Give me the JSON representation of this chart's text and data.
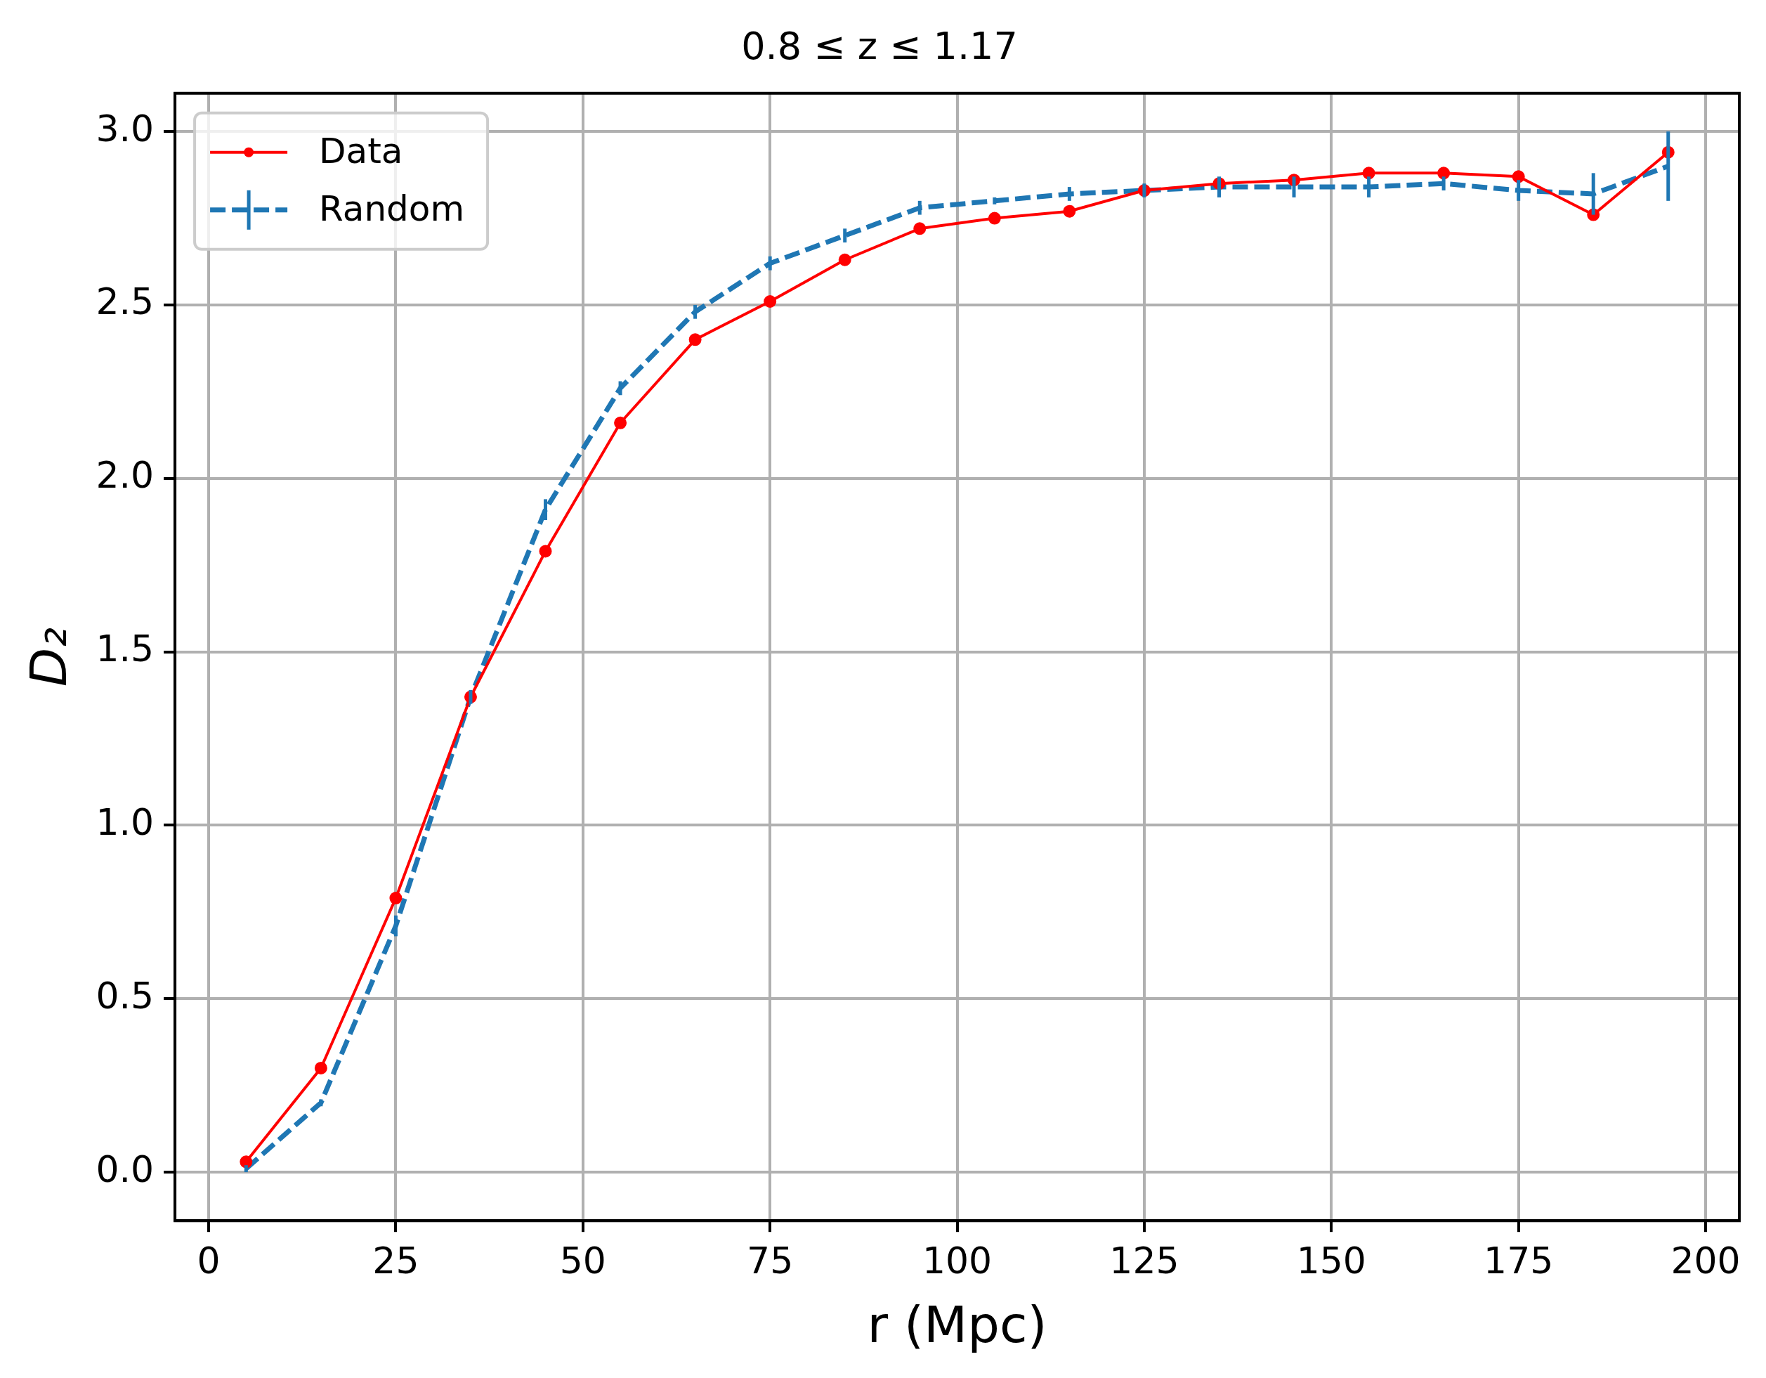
{
  "chart_data": {
    "type": "line",
    "title": "0.8 ≤ z ≤ 1.17",
    "xlabel": "r (Mpc)",
    "ylabel": "D₂",
    "x": [
      5,
      15,
      25,
      35,
      45,
      55,
      65,
      75,
      85,
      95,
      105,
      115,
      125,
      135,
      145,
      155,
      165,
      175,
      185,
      195
    ],
    "series": [
      {
        "name": "Data",
        "color": "#ff0000",
        "marker": "circle",
        "line_style": "solid",
        "values": [
          0.03,
          0.3,
          0.79,
          1.37,
          1.79,
          2.16,
          2.4,
          2.51,
          2.63,
          2.72,
          2.75,
          2.77,
          2.83,
          2.85,
          2.86,
          2.88,
          2.88,
          2.87,
          2.76,
          2.94
        ]
      },
      {
        "name": "Random",
        "color": "#1f77b4",
        "marker": "none",
        "line_style": "dashed",
        "values": [
          0.01,
          0.2,
          0.71,
          1.37,
          1.91,
          2.26,
          2.48,
          2.62,
          2.7,
          2.78,
          2.8,
          2.82,
          2.83,
          2.84,
          2.84,
          2.84,
          2.85,
          2.83,
          2.82,
          2.9
        ],
        "errors": [
          0.01,
          0.01,
          0.03,
          0.02,
          0.03,
          0.02,
          0.02,
          0.02,
          0.02,
          0.02,
          0.01,
          0.02,
          0.02,
          0.03,
          0.03,
          0.03,
          0.02,
          0.03,
          0.06,
          0.1
        ]
      }
    ],
    "xlim": [
      -4.5,
      204.5
    ],
    "xticks": [
      0,
      25,
      50,
      75,
      100,
      125,
      150,
      175,
      200
    ],
    "ylim": [
      -0.14,
      3.11
    ],
    "yticks": [
      {
        "value": 0,
        "label": "0.0"
      },
      {
        "value": 0.5,
        "label": "0.5"
      },
      {
        "value": 1,
        "label": "1.0"
      },
      {
        "value": 1.5,
        "label": "1.5"
      },
      {
        "value": 2,
        "label": "2.0"
      },
      {
        "value": 2.5,
        "label": "2.5"
      },
      {
        "value": 3,
        "label": "3.0"
      }
    ],
    "grid": true,
    "legend": "top left"
  }
}
